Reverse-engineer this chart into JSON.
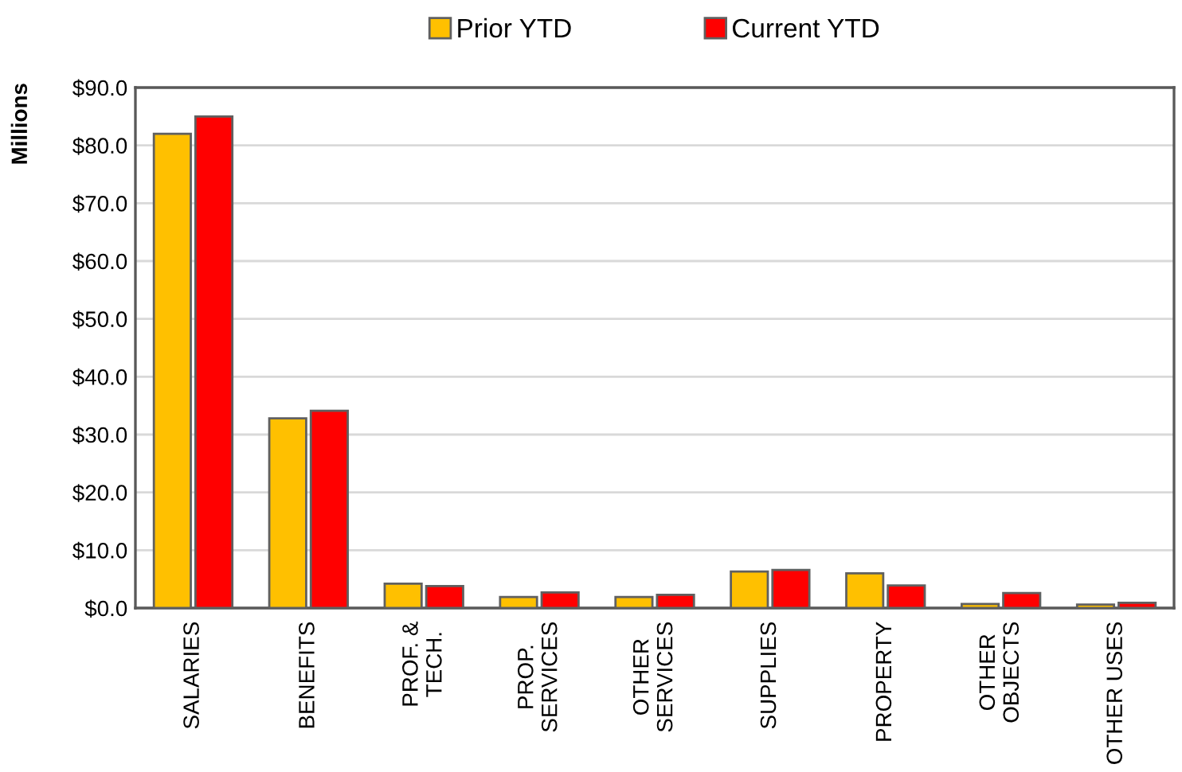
{
  "chart_data": {
    "type": "bar",
    "ylabel": "Millions",
    "categories": [
      "SALARIES",
      "BENEFITS",
      "PROF. &\nTECH.",
      "PROP.\nSERVICES",
      "OTHER\nSERVICES",
      "SUPPLIES",
      "PROPERTY",
      "OTHER\nOBJECTS",
      "OTHER USES"
    ],
    "series": [
      {
        "name": "Prior YTD",
        "color": "#ffc000",
        "values": [
          82.0,
          32.8,
          4.2,
          1.9,
          1.9,
          6.3,
          6.0,
          0.7,
          0.6
        ]
      },
      {
        "name": "Current YTD",
        "color": "#ff0000",
        "values": [
          85.0,
          34.1,
          3.8,
          2.7,
          2.3,
          6.6,
          3.9,
          2.6,
          0.9
        ]
      }
    ],
    "ylim": [
      0,
      90
    ],
    "yticks": [
      {
        "value": 0,
        "label": "$0.0"
      },
      {
        "value": 10,
        "label": "$10.0"
      },
      {
        "value": 20,
        "label": "$20.0"
      },
      {
        "value": 30,
        "label": "$30.0"
      },
      {
        "value": 40,
        "label": "$40.0"
      },
      {
        "value": 50,
        "label": "$50.0"
      },
      {
        "value": 60,
        "label": "$60.0"
      },
      {
        "value": 70,
        "label": "$70.0"
      },
      {
        "value": 80,
        "label": "$80.0"
      },
      {
        "value": 90,
        "label": "$90.0"
      }
    ],
    "grid": "y",
    "legend": "top"
  }
}
